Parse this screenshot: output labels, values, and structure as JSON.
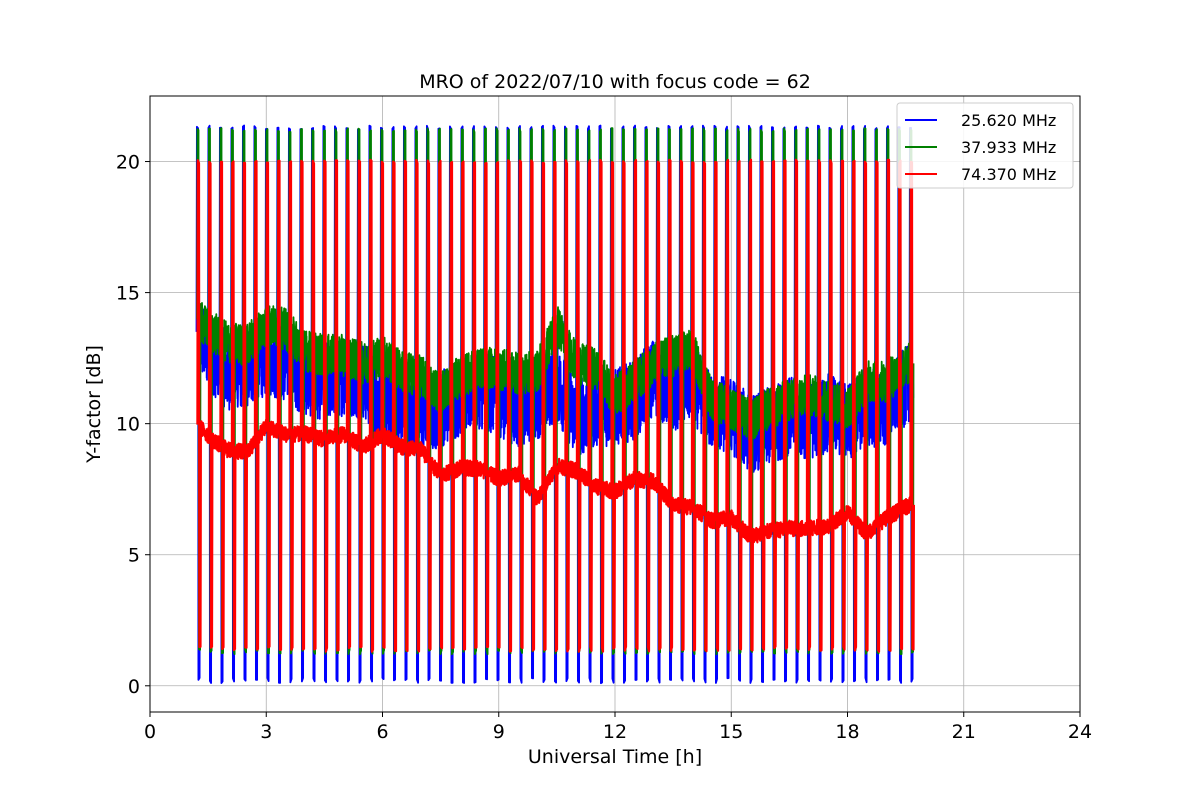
{
  "chart_data": {
    "type": "line",
    "title": "MRO of 2022/07/10 with focus code = 62",
    "xlabel": "Universal Time [h]",
    "ylabel": "Y-factor [dB]",
    "xlim": [
      0,
      24
    ],
    "ylim": [
      -1,
      22.5
    ],
    "x_ticks": [
      "0",
      "3",
      "6",
      "9",
      "12",
      "15",
      "18",
      "21",
      "24"
    ],
    "y_ticks": [
      "0",
      "5",
      "10",
      "15",
      "20"
    ],
    "grid": true,
    "legend_position": "top-right",
    "calibration_spikes": {
      "start_h": 1.2,
      "end_h": 19.6,
      "count": 63,
      "peak_dB": {
        "25.620 MHz": 21.3,
        "37.933 MHz": 21.2,
        "74.370 MHz": 20.0
      },
      "trough_dB": {
        "25.620 MHz": 0.1,
        "37.933 MHz": 1.2,
        "74.370 MHz": 1.3
      }
    },
    "series": [
      {
        "name": "25.620 MHz",
        "color": "#0000ff",
        "x": [
          1.2,
          1.6,
          2.0,
          2.5,
          3.0,
          3.5,
          4.0,
          4.5,
          5.0,
          5.5,
          6.0,
          6.5,
          7.0,
          7.5,
          8.0,
          8.5,
          9.0,
          9.5,
          10.0,
          10.5,
          11.0,
          11.5,
          12.0,
          12.5,
          13.0,
          13.5,
          14.0,
          14.5,
          15.0,
          15.5,
          16.0,
          16.5,
          17.0,
          17.5,
          18.0,
          18.5,
          19.0,
          19.6
        ],
        "y": [
          13.5,
          12.6,
          12.0,
          12.1,
          12.6,
          12.3,
          11.8,
          11.6,
          11.8,
          11.7,
          10.6,
          10.4,
          10.3,
          10.6,
          11.0,
          11.3,
          11.0,
          10.6,
          10.9,
          11.6,
          10.2,
          10.6,
          10.6,
          10.9,
          11.8,
          11.2,
          11.6,
          10.4,
          10.3,
          9.6,
          9.9,
          10.3,
          10.1,
          10.4,
          10.1,
          10.6,
          10.6,
          11.6
        ],
        "band_dB": 1.5
      },
      {
        "name": "37.933 MHz",
        "color": "#008000",
        "x": [
          1.2,
          1.6,
          2.0,
          2.5,
          3.0,
          3.5,
          4.0,
          4.5,
          5.0,
          5.5,
          6.0,
          6.5,
          7.0,
          7.5,
          8.0,
          8.5,
          9.0,
          9.5,
          10.0,
          10.5,
          11.0,
          11.5,
          12.0,
          12.5,
          13.0,
          13.5,
          14.0,
          14.5,
          15.0,
          15.5,
          16.0,
          16.5,
          17.0,
          17.5,
          18.0,
          18.5,
          19.0,
          19.6
        ],
        "y": [
          14.0,
          13.5,
          13.1,
          13.0,
          13.8,
          13.6,
          12.8,
          12.6,
          12.6,
          12.3,
          12.6,
          12.0,
          11.8,
          11.2,
          11.8,
          12.1,
          12.1,
          11.9,
          12.0,
          13.8,
          12.3,
          12.1,
          11.1,
          11.6,
          12.3,
          12.6,
          12.8,
          10.9,
          10.6,
          10.1,
          10.6,
          10.9,
          11.1,
          10.9,
          10.6,
          11.6,
          11.6,
          12.3
        ],
        "band_dB": 0.8
      },
      {
        "name": "74.370 MHz",
        "color": "#ff0000",
        "x": [
          1.2,
          1.6,
          2.0,
          2.5,
          3.0,
          3.5,
          4.0,
          4.5,
          5.0,
          5.5,
          6.0,
          6.5,
          7.0,
          7.5,
          8.0,
          8.5,
          9.0,
          9.5,
          10.0,
          10.5,
          11.0,
          11.5,
          12.0,
          12.5,
          13.0,
          13.5,
          14.0,
          14.5,
          15.0,
          15.5,
          16.0,
          16.5,
          17.0,
          17.5,
          18.0,
          18.5,
          19.0,
          19.6
        ],
        "y": [
          10.0,
          9.4,
          9.0,
          8.9,
          9.9,
          9.6,
          9.6,
          9.4,
          9.6,
          9.1,
          9.6,
          9.1,
          9.0,
          8.0,
          8.3,
          8.3,
          7.9,
          8.1,
          7.1,
          8.4,
          8.2,
          7.6,
          7.4,
          7.9,
          7.8,
          6.9,
          6.8,
          6.3,
          6.4,
          5.7,
          5.9,
          6.0,
          6.0,
          6.1,
          6.6,
          5.8,
          6.4,
          6.9
        ],
        "band_dB": 0.3
      }
    ]
  }
}
